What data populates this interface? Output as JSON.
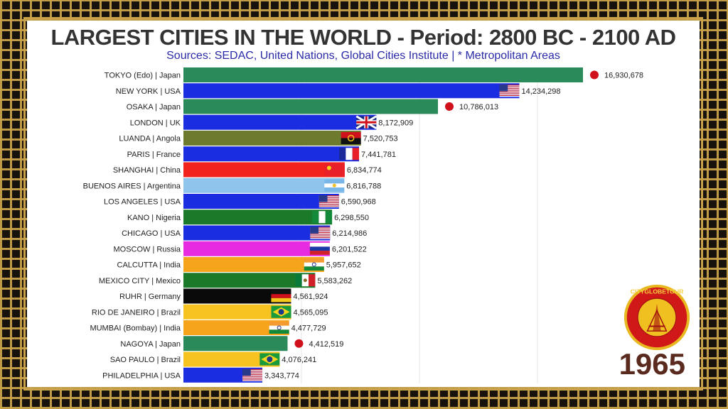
{
  "header": {
    "title": "LARGEST CITIES IN THE WORLD - Period: 2800 BC - 2100 AD",
    "subtitle": "Sources: SEDAC, United Nations, Global Cities Institute | * Metropolitan Areas"
  },
  "year": "1965",
  "logo": {
    "text": "CITYGLOBETOUR",
    "colors": {
      "ring": "#d01818",
      "inner": "#f0c020",
      "border": "#e8b820"
    }
  },
  "chart_data": {
    "type": "bar",
    "orientation": "horizontal",
    "title": "LARGEST CITIES IN THE WORLD - Period: 2800 BC - 2100 AD",
    "subtitle": "Sources: SEDAC, United Nations, Global Cities Institute | * Metropolitan Areas",
    "grid": true,
    "xlim": [
      0,
      17500000
    ],
    "bars": [
      {
        "label": "TOKYO (Edo) | Japan",
        "value": 16930678,
        "value_label": "16,930,678",
        "color": "#2a8a5a",
        "flag": "japan"
      },
      {
        "label": "NEW YORK | USA",
        "value": 14234298,
        "value_label": "14,234,298",
        "color": "#1a2de0",
        "flag": "usa"
      },
      {
        "label": "OSAKA | Japan",
        "value": 10786013,
        "value_label": "10,786,013",
        "color": "#2a8a5a",
        "flag": "japan"
      },
      {
        "label": "LONDON | UK",
        "value": 8172909,
        "value_label": "8,172,909",
        "color": "#1a2de0",
        "flag": "uk"
      },
      {
        "label": "LUANDA | Angola",
        "value": 7520753,
        "value_label": "7,520,753",
        "color": "#6e7a2e",
        "flag": "angola"
      },
      {
        "label": "PARIS | France",
        "value": 7441781,
        "value_label": "7,441,781",
        "color": "#1a2de0",
        "flag": "france"
      },
      {
        "label": "SHANGHAI | China",
        "value": 6834774,
        "value_label": "6,834,774",
        "color": "#f2221e",
        "flag": "china"
      },
      {
        "label": "BUENOS AIRES | Argentina",
        "value": 6816788,
        "value_label": "6,816,788",
        "color": "#8fc4ec",
        "flag": "argentina"
      },
      {
        "label": "LOS ANGELES | USA",
        "value": 6590968,
        "value_label": "6,590,968",
        "color": "#1a2de0",
        "flag": "usa"
      },
      {
        "label": "KANO | Nigeria",
        "value": 6298550,
        "value_label": "6,298,550",
        "color": "#1a7a2a",
        "flag": "nigeria"
      },
      {
        "label": "CHICAGO | USA",
        "value": 6214986,
        "value_label": "6,214,986",
        "color": "#1a2de0",
        "flag": "usa"
      },
      {
        "label": "MOSCOW | Russia",
        "value": 6201522,
        "value_label": "6,201,522",
        "color": "#e62be0",
        "flag": "russia"
      },
      {
        "label": "CALCUTTA | India",
        "value": 5957652,
        "value_label": "5,957,652",
        "color": "#f5a41c",
        "flag": "india"
      },
      {
        "label": "MEXICO CITY | Mexico",
        "value": 5583262,
        "value_label": "5,583,262",
        "color": "#1a7a2a",
        "flag": "mexico"
      },
      {
        "label": "RUHR | Germany",
        "value": 4561924,
        "value_label": "4,561,924",
        "color": "#0a0a0a",
        "flag": "germany"
      },
      {
        "label": "RIO DE JANEIRO | Brazil",
        "value": 4565095,
        "value_label": "4,565,095",
        "color": "#f7c320",
        "flag": "brazil"
      },
      {
        "label": "MUMBAI (Bombay) | India",
        "value": 4477729,
        "value_label": "4,477,729",
        "color": "#f5a41c",
        "flag": "india"
      },
      {
        "label": "NAGOYA | Japan",
        "value": 4412519,
        "value_label": "4,412,519",
        "color": "#2a8a5a",
        "flag": "japan"
      },
      {
        "label": "SAO PAULO | Brazil",
        "value": 4076241,
        "value_label": "4,076,241",
        "color": "#f7c320",
        "flag": "brazil"
      },
      {
        "label": "PHILADELPHIA | USA",
        "value": 3343774,
        "value_label": "3,343,774",
        "color": "#1a2de0",
        "flag": "usa"
      }
    ]
  }
}
